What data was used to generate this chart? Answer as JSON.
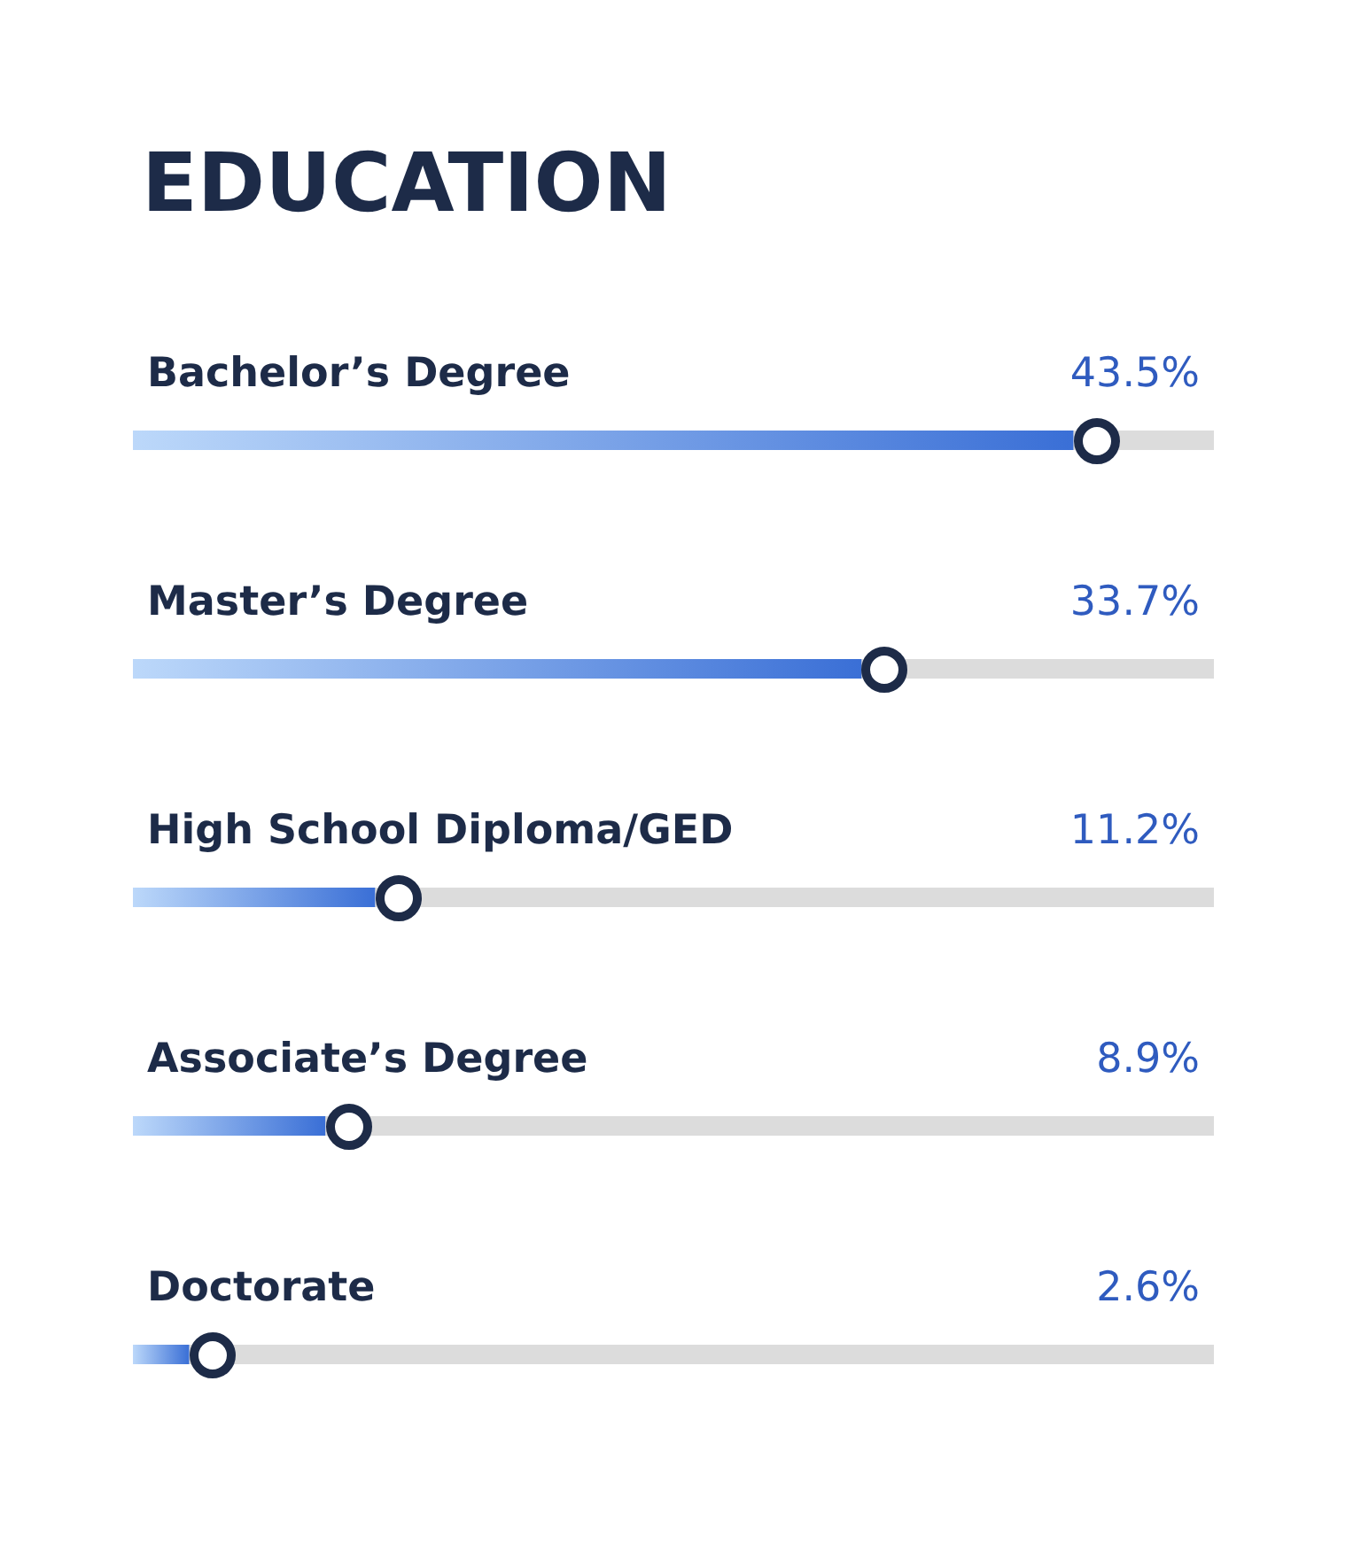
{
  "chart_data": {
    "type": "bar",
    "orientation": "horizontal",
    "title": "EDUCATION",
    "categories": [
      "Bachelor’s Degree",
      "Master’s Degree",
      "High School Diploma/GED",
      "Associate’s Degree",
      "Doctorate"
    ],
    "values": [
      43.5,
      33.7,
      11.2,
      8.9,
      2.6
    ],
    "value_labels": [
      "43.5%",
      "33.7%",
      "11.2%",
      "8.9%",
      "2.6%"
    ],
    "color": "#3a6fd6",
    "tick_labels": "y"
  }
}
